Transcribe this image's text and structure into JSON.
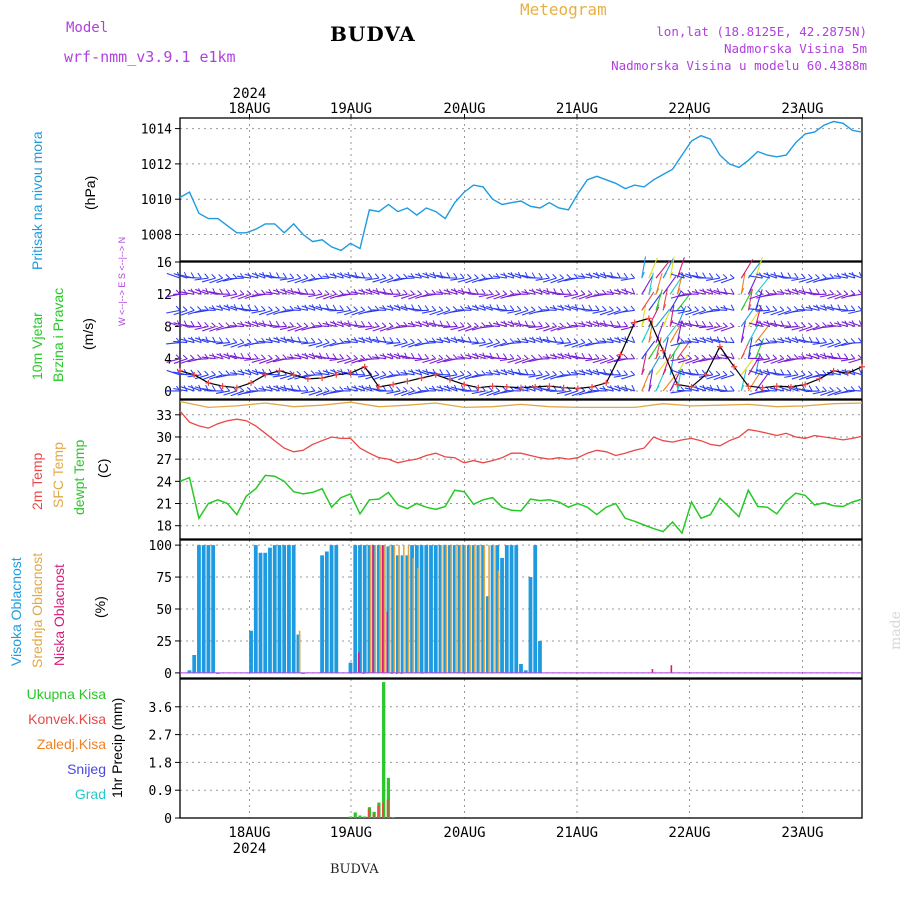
{
  "header": {
    "model_label": "Model",
    "model_name": "wrf-nmm_v3.9.1  e1km",
    "title": "BUDVA",
    "meteogram": "Meteogram",
    "lonlat": "lon,lat (18.8125E, 42.2875N)",
    "elevation": "Nadmorska Visina 5m",
    "model_elevation": "Nadmorska Visina u modelu 60.4388m"
  },
  "footer": {
    "station": "BUDVA",
    "watermark": "made by Angel"
  },
  "colors": {
    "pressure": "#1e9be0",
    "temp2m": "#e84848",
    "sfc_temp": "#e0a848",
    "dewpt": "#28c828",
    "high_cloud": "#1e9be0",
    "mid_cloud": "#e0a848",
    "low_cloud": "#d81b78",
    "total_precip": "#28c828",
    "convective_precip": "#e84848",
    "gridscale_precip": "#f08020",
    "snow": "#4848e0",
    "hail": "#28c8c8"
  },
  "time_axis": {
    "year": "2024",
    "days": [
      "18AUG",
      "19AUG",
      "20AUG",
      "21AUG",
      "22AUG",
      "23AUG"
    ]
  },
  "panels": {
    "pressure": {
      "label": "Pritisak na nivou mora",
      "unit": "(hPa)",
      "ticks": [
        "1008",
        "1010",
        "1012",
        "1014"
      ]
    },
    "wind": {
      "label1": "10m Vjetar",
      "label2": "Brzina i Pravac",
      "unit": "(m/s)",
      "ticks": [
        "0",
        "4",
        "8",
        "12",
        "16"
      ],
      "compass": "W <--|--> E   S <--|--> N"
    },
    "temp": {
      "label1": "2m Temp",
      "label2": "SFC Temp",
      "label3": "dewpt Temp",
      "unit": "(C)",
      "ticks": [
        "18",
        "21",
        "24",
        "27",
        "30",
        "33"
      ]
    },
    "cloud": {
      "label1": "Visoka Oblacnost",
      "label2": "Srednja Oblacnost",
      "label3": "Niska Oblacnost",
      "unit": "(%)",
      "ticks": [
        "0",
        "25",
        "50",
        "75",
        "100"
      ]
    },
    "precip": {
      "unit": "1hr Precip (mm)",
      "ticks": [
        "0",
        "0.9",
        "1.8",
        "2.7",
        "3.6"
      ],
      "legend": [
        "Ukupna Kisa",
        "Konvek.Kisa",
        "Zaledj.Kisa",
        "Snijeg",
        "Grad"
      ]
    }
  },
  "chart_data": [
    {
      "type": "line",
      "title": "Pritisak na nivou mora",
      "ylabel": "(hPa)",
      "ylim": [
        1006.5,
        1014.6
      ],
      "x_hours_range": [
        0,
        144
      ],
      "series": [
        {
          "x": [
            0,
            2,
            4,
            6,
            8,
            10,
            12,
            14,
            16,
            18,
            20,
            22,
            24,
            26,
            28,
            30,
            32,
            34,
            36,
            38,
            40,
            42,
            44,
            46,
            48,
            50,
            52,
            54,
            56,
            58,
            60,
            62,
            64,
            66,
            68,
            70,
            72,
            74,
            76,
            78,
            80,
            82,
            84,
            86,
            88,
            90,
            92,
            94,
            96,
            98,
            100,
            102,
            104,
            106,
            108,
            110,
            112,
            114,
            116,
            118,
            120,
            122,
            124,
            126,
            128,
            130,
            132,
            134,
            136,
            138,
            140,
            142,
            144
          ],
          "values": [
            1010.1,
            1010.4,
            1009.2,
            1008.9,
            1008.9,
            1008.5,
            1008.1,
            1008.1,
            1008.3,
            1008.6,
            1008.6,
            1008.1,
            1008.6,
            1008.0,
            1007.6,
            1007.7,
            1007.3,
            1007.1,
            1007.5,
            1007.2,
            1009.4,
            1009.3,
            1009.7,
            1009.3,
            1009.5,
            1009.1,
            1009.5,
            1009.3,
            1008.9,
            1009.8,
            1010.4,
            1010.8,
            1010.7,
            1010.0,
            1009.7,
            1009.8,
            1009.9,
            1009.6,
            1009.5,
            1009.8,
            1009.5,
            1009.4,
            1010.3,
            1011.1,
            1011.3,
            1011.1,
            1010.9,
            1010.6,
            1010.8,
            1010.7,
            1011.1,
            1011.4,
            1011.7,
            1012.5,
            1013.3,
            1013.6,
            1013.4,
            1012.5,
            1012.0,
            1011.8,
            1012.2,
            1012.7,
            1012.5,
            1012.4,
            1012.5,
            1013.2,
            1013.7,
            1013.8,
            1014.2,
            1014.4,
            1014.3,
            1013.9,
            1013.8
          ]
        }
      ]
    },
    {
      "type": "line",
      "title": "10m Vjetar",
      "ylabel": "(m/s)",
      "ylim": [
        -1,
        16
      ],
      "x_hours_range": [
        0,
        144
      ],
      "series": [
        {
          "name": "speed",
          "x": [
            0,
            3,
            6,
            9,
            12,
            15,
            18,
            21,
            24,
            27,
            30,
            33,
            36,
            39,
            42,
            45,
            48,
            51,
            54,
            57,
            60,
            63,
            66,
            69,
            72,
            75,
            78,
            81,
            84,
            87,
            90,
            93,
            96,
            99,
            102,
            105,
            108,
            111,
            114,
            117,
            120,
            123,
            126,
            129,
            132,
            135,
            138,
            141,
            144
          ],
          "values": [
            2.5,
            2.0,
            1.0,
            0.6,
            0.4,
            1.0,
            2.0,
            2.5,
            2.0,
            1.5,
            1.6,
            2.0,
            2.2,
            3.0,
            0.5,
            0.8,
            1.2,
            1.6,
            2.0,
            1.4,
            0.8,
            0.4,
            0.6,
            0.5,
            0.4,
            0.5,
            0.6,
            0.4,
            0.3,
            0.5,
            1.0,
            4.5,
            8.5,
            9.0,
            5.0,
            0.8,
            0.5,
            2.0,
            5.5,
            3.0,
            0.6,
            0.4,
            0.6,
            0.5,
            0.8,
            1.5,
            2.5,
            2.2,
            3.0
          ]
        }
      ]
    },
    {
      "type": "line",
      "title": "Temp",
      "ylabel": "(C)",
      "ylim": [
        16.2,
        35
      ],
      "x_hours_range": [
        0,
        144
      ],
      "series": [
        {
          "name": "2m Temp",
          "x": [
            0,
            2,
            4,
            6,
            8,
            10,
            12,
            14,
            16,
            18,
            20,
            22,
            24,
            26,
            28,
            30,
            32,
            34,
            36,
            38,
            40,
            42,
            44,
            46,
            48,
            50,
            52,
            54,
            56,
            58,
            60,
            62,
            64,
            66,
            68,
            70,
            72,
            74,
            76,
            78,
            80,
            82,
            84,
            86,
            88,
            90,
            92,
            94,
            96,
            98,
            100,
            102,
            104,
            106,
            108,
            110,
            112,
            114,
            116,
            118,
            120,
            122,
            124,
            126,
            128,
            130,
            132,
            134,
            136,
            138,
            140,
            142,
            144
          ],
          "values": [
            33.5,
            32.0,
            31.5,
            31.2,
            31.8,
            32.2,
            32.4,
            32.2,
            31.5,
            30.5,
            29.5,
            28.5,
            28.0,
            28.2,
            29.0,
            29.5,
            30.0,
            29.8,
            29.8,
            28.5,
            27.8,
            27.2,
            27.0,
            26.5,
            26.8,
            27.0,
            27.5,
            27.8,
            27.3,
            27.2,
            26.5,
            26.8,
            26.5,
            26.8,
            27.2,
            27.8,
            27.8,
            27.5,
            27.2,
            27.0,
            27.2,
            27.0,
            27.2,
            27.8,
            28.2,
            28.0,
            27.5,
            27.8,
            28.2,
            28.5,
            30.0,
            29.5,
            29.3,
            29.6,
            29.8,
            29.5,
            29.0,
            28.8,
            29.5,
            30.0,
            31.0,
            30.8,
            30.5,
            30.2,
            30.5,
            30.0,
            29.8,
            30.2,
            30.0,
            29.8,
            29.6,
            29.8,
            30.1
          ]
        },
        {
          "name": "SFC Temp",
          "x": [
            0,
            6,
            12,
            18,
            24,
            30,
            36,
            42,
            48,
            54,
            60,
            66,
            72,
            78,
            84,
            90,
            96,
            102,
            108,
            114,
            120,
            126,
            132,
            138,
            144
          ],
          "values": [
            34.8,
            34.0,
            34.2,
            34.6,
            34.1,
            34.3,
            34.7,
            34.1,
            34.3,
            34.6,
            34.0,
            34.1,
            34.4,
            34.1,
            34.0,
            34.0,
            34.0,
            34.5,
            34.2,
            34.3,
            34.4,
            34.1,
            34.2,
            34.5,
            34.6
          ]
        },
        {
          "name": "dewpt Temp",
          "x": [
            0,
            2,
            4,
            6,
            8,
            10,
            12,
            14,
            16,
            18,
            20,
            22,
            24,
            26,
            28,
            30,
            32,
            34,
            36,
            38,
            40,
            42,
            44,
            46,
            48,
            50,
            52,
            54,
            56,
            58,
            60,
            62,
            64,
            66,
            68,
            70,
            72,
            74,
            76,
            78,
            80,
            82,
            84,
            86,
            88,
            90,
            92,
            94,
            96,
            98,
            100,
            102,
            104,
            106,
            108,
            110,
            112,
            114,
            116,
            118,
            120,
            122,
            124,
            126,
            128,
            130,
            132,
            134,
            136,
            138,
            140,
            142,
            144
          ],
          "values": [
            24.0,
            24.5,
            19.0,
            21.0,
            21.5,
            21.0,
            19.5,
            22.0,
            23.0,
            24.8,
            24.7,
            24.0,
            22.6,
            22.3,
            22.5,
            23.0,
            20.5,
            21.8,
            22.3,
            19.6,
            21.5,
            21.6,
            22.5,
            20.8,
            20.3,
            21.0,
            20.5,
            20.2,
            20.6,
            22.8,
            22.6,
            20.9,
            21.5,
            21.8,
            20.5,
            20.1,
            20.0,
            21.6,
            21.4,
            21.5,
            21.2,
            20.5,
            21.0,
            20.5,
            19.5,
            20.5,
            21.0,
            19.0,
            18.6,
            18.1,
            17.6,
            17.2,
            18.5,
            17.0,
            21.2,
            19.0,
            19.5,
            21.7,
            20.5,
            19.2,
            22.8,
            20.6,
            20.5,
            19.6,
            21.3,
            22.4,
            22.1,
            20.8,
            21.1,
            20.7,
            20.6,
            21.2,
            21.6
          ]
        }
      ]
    },
    {
      "type": "bar",
      "title": "Oblacnost",
      "ylabel": "(%)",
      "ylim": [
        -4,
        104
      ],
      "x_hours_range": [
        0,
        144
      ],
      "series": [
        {
          "name": "Visoka Oblacnost",
          "x": [
            2,
            3,
            4,
            5,
            6,
            7,
            8,
            15,
            16,
            17,
            18,
            19,
            20,
            21,
            22,
            23,
            24,
            25,
            26,
            30,
            31,
            32,
            33,
            36,
            37,
            38,
            39,
            40,
            41,
            42,
            43,
            44,
            45,
            46,
            47,
            48,
            49,
            50,
            51,
            52,
            53,
            54,
            55,
            56,
            57,
            58,
            59,
            60,
            61,
            62,
            63,
            64,
            65,
            66,
            67,
            68,
            69,
            70,
            71,
            72,
            73,
            74,
            75,
            76
          ],
          "values": [
            2,
            14,
            100,
            100,
            100,
            100,
            0,
            33,
            100,
            94,
            94,
            98,
            100,
            100,
            100,
            100,
            100,
            30,
            0,
            92,
            95,
            100,
            100,
            8,
            100,
            100,
            100,
            100,
            100,
            100,
            100,
            99,
            100,
            92,
            92,
            92,
            100,
            100,
            100,
            100,
            100,
            100,
            100,
            100,
            100,
            100,
            100,
            100,
            100,
            100,
            100,
            100,
            60,
            100,
            100,
            90,
            100,
            100,
            100,
            7,
            2,
            75,
            100,
            25
          ]
        },
        {
          "name": "Srednja Oblacnost",
          "x": [
            25,
            40,
            41,
            42,
            43,
            44,
            45,
            46,
            47,
            48,
            49,
            50,
            51,
            55,
            56,
            57,
            58,
            59,
            60,
            61,
            62,
            63,
            64,
            65,
            66,
            67
          ],
          "values": [
            33,
            100,
            100,
            100,
            100,
            100,
            100,
            100,
            100,
            100,
            90,
            82,
            0,
            100,
            100,
            100,
            100,
            100,
            100,
            100,
            100,
            100,
            100,
            100,
            100,
            80
          ]
        },
        {
          "name": "Niska Oblacnost",
          "x": [
            38,
            39,
            41,
            43,
            44,
            45,
            46,
            47,
            100,
            104
          ],
          "values": [
            16,
            0,
            100,
            100,
            48,
            0,
            0,
            0,
            3,
            6
          ]
        }
      ]
    },
    {
      "type": "bar",
      "title": "1hr Precip",
      "ylabel": "1hr Precip (mm)",
      "ylim": [
        0,
        4.5
      ],
      "x_hours_range": [
        0,
        144
      ],
      "series": [
        {
          "name": "Ukupna Kisa",
          "x": [
            36,
            37,
            38,
            39,
            40,
            41,
            42,
            43,
            44,
            45
          ],
          "values": [
            0.05,
            0.18,
            0.08,
            0.05,
            0.35,
            0.2,
            0.5,
            4.4,
            1.3,
            0.03
          ]
        },
        {
          "name": "Konvek.Kisa",
          "x": [
            40,
            41,
            42,
            43,
            44
          ],
          "values": [
            0.3,
            0.15,
            0.4,
            0.5,
            0.6
          ]
        },
        {
          "name": "Zaledj.Kisa",
          "x": [],
          "values": []
        },
        {
          "name": "Snijeg",
          "x": [],
          "values": []
        },
        {
          "name": "Grad",
          "x": [],
          "values": []
        }
      ]
    }
  ]
}
